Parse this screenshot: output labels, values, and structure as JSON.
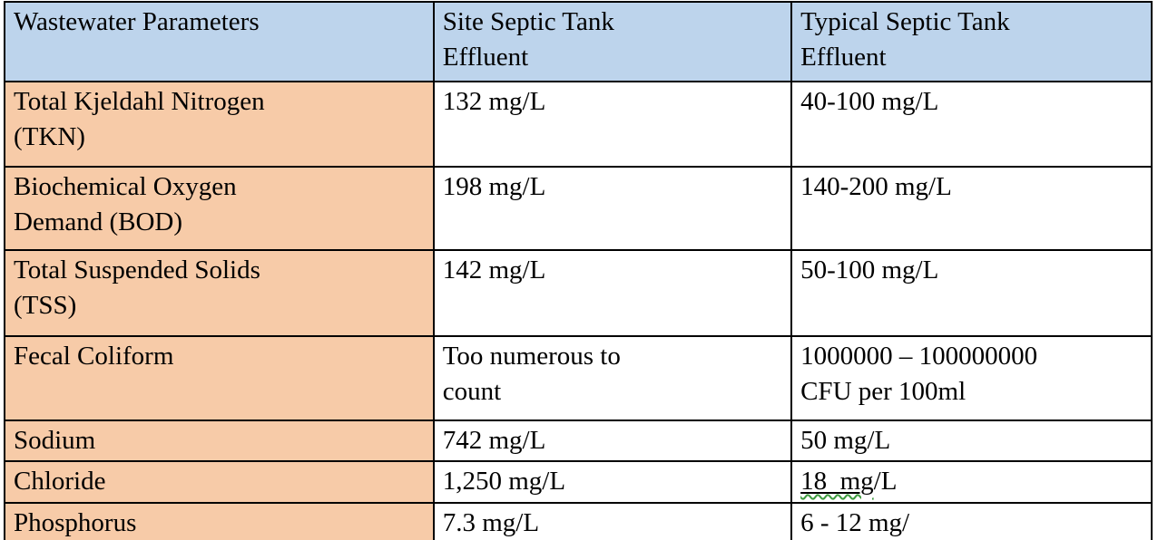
{
  "table": {
    "headers": [
      "Wastewater Parameters",
      "Site Septic Tank\nEffluent",
      "Typical Septic Tank\nEffluent"
    ],
    "rows": [
      {
        "parameter": "Total Kjeldahl Nitrogen\n(TKN)",
        "site": "132 mg/L",
        "typical": "40-100 mg/L"
      },
      {
        "parameter": "Biochemical Oxygen\nDemand (BOD)",
        "site": "198 mg/L",
        "typical": "140-200 mg/L"
      },
      {
        "parameter": "Total Suspended Solids\n(TSS)",
        "site": "142 mg/L",
        "typical": "50-100 mg/L"
      },
      {
        "parameter": "Fecal Coliform",
        "site": "Too numerous to\ncount",
        "typical": "1000000 – 100000000\nCFU per 100ml"
      },
      {
        "parameter": "Sodium",
        "site": "742 mg/L",
        "typical": "50 mg/L"
      },
      {
        "parameter": "Chloride",
        "site": "1,250 mg/L",
        "typical": "18  mg/L",
        "typical_underlined": "18  mg",
        "typical_suffix": "/L"
      },
      {
        "parameter": "Phosphorus",
        "site": "7.3 mg/L",
        "typical": "6 - 12 mg/"
      }
    ],
    "colors": {
      "header_bg": "#bdd4ec",
      "param_bg": "#f7cba8",
      "border": "#000000",
      "misspell_wave": "#3f9b3f"
    }
  }
}
